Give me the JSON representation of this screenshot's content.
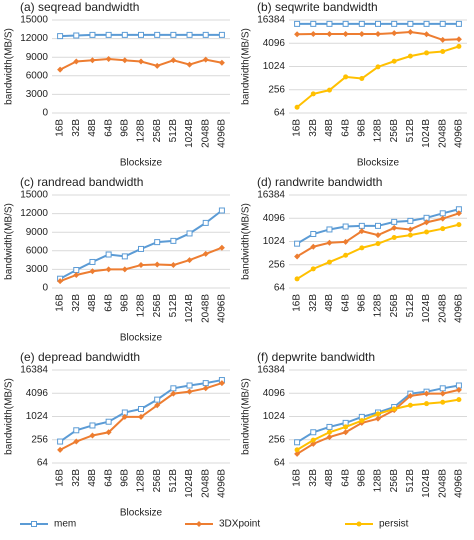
{
  "chart_data": [
    {
      "type": "line",
      "title": "(a) seqread bandwidth",
      "x_label": "Blocksize",
      "y_label": "bandwidth(MB/S)",
      "categories": [
        "16B",
        "32B",
        "48B",
        "64B",
        "96B",
        "128B",
        "256B",
        "512B",
        "1024B",
        "2048B",
        "4096B"
      ],
      "ylim": [
        0,
        15000
      ],
      "yticks": [
        0,
        3000,
        6000,
        9000,
        12000,
        15000
      ],
      "grid": true,
      "series": [
        {
          "name": "mem",
          "color": "#5b9bd5",
          "values": [
            12400,
            12500,
            12600,
            12600,
            12600,
            12600,
            12600,
            12600,
            12600,
            12600,
            12600
          ]
        },
        {
          "name": "3DXpoint",
          "color": "#ed7d31",
          "values": [
            7000,
            8300,
            8500,
            8700,
            8500,
            8300,
            7600,
            8500,
            7800,
            8600,
            8100
          ]
        }
      ]
    },
    {
      "type": "line",
      "title": "(b) seqwrite bandwidth",
      "x_label": "Blocksize",
      "y_label": "bandwidth(MB/S)",
      "categories": [
        "16B",
        "32B",
        "48B",
        "64B",
        "96B",
        "128B",
        "256B",
        "512B",
        "1024B",
        "2048B",
        "4096B"
      ],
      "ylim": [
        64,
        16384
      ],
      "yticks": [
        64,
        256,
        1024,
        4096,
        16384
      ],
      "yscale": "log",
      "grid": true,
      "series": [
        {
          "name": "mem",
          "color": "#5b9bd5",
          "values": [
            13000,
            13000,
            13000,
            13000,
            13000,
            13000,
            13000,
            13000,
            13000,
            13000,
            13000
          ]
        },
        {
          "name": "3DXpoint",
          "color": "#ed7d31",
          "values": [
            7000,
            7100,
            7100,
            7100,
            7100,
            7100,
            7500,
            8000,
            7000,
            5000,
            5200
          ]
        },
        {
          "name": "persist",
          "color": "#ffc000",
          "values": [
            90,
            200,
            250,
            550,
            500,
            1000,
            1400,
            1900,
            2300,
            2500,
            3400
          ]
        }
      ]
    },
    {
      "type": "line",
      "title": "(c) randread bandwidth",
      "x_label": "Blocksize",
      "y_label": "bandwidth(MB/S)",
      "categories": [
        "16B",
        "32B",
        "48B",
        "64B",
        "96B",
        "128B",
        "256B",
        "512B",
        "1024B",
        "2048B",
        "4096B"
      ],
      "ylim": [
        0,
        15000
      ],
      "yticks": [
        0,
        3000,
        6000,
        9000,
        12000,
        15000
      ],
      "grid": true,
      "series": [
        {
          "name": "mem",
          "color": "#5b9bd5",
          "values": [
            1500,
            2900,
            4200,
            5400,
            5100,
            6300,
            7400,
            7600,
            8800,
            10500,
            12500
          ]
        },
        {
          "name": "3DXpoint",
          "color": "#ed7d31",
          "values": [
            1100,
            2100,
            2700,
            3000,
            3000,
            3700,
            3800,
            3700,
            4500,
            5500,
            6500
          ]
        }
      ]
    },
    {
      "type": "line",
      "title": "(d) randwrite bandwidth",
      "y_label": "bandwidth(MB/S)",
      "categories": [
        "16B",
        "32B",
        "48B",
        "64B",
        "96B",
        "128B",
        "256B",
        "512B",
        "1024B",
        "2048B",
        "4096B"
      ],
      "ylim": [
        64,
        16384
      ],
      "yticks": [
        64,
        256,
        1024,
        4096,
        16384
      ],
      "yscale": "log",
      "grid": true,
      "series": [
        {
          "name": "mem",
          "color": "#5b9bd5",
          "values": [
            900,
            1600,
            2100,
            2500,
            2600,
            2600,
            3300,
            3500,
            4200,
            5500,
            7000
          ]
        },
        {
          "name": "3DXpoint",
          "color": "#ed7d31",
          "values": [
            420,
            750,
            950,
            1000,
            1900,
            1500,
            2300,
            2100,
            3200,
            4000,
            5500
          ]
        },
        {
          "name": "persist",
          "color": "#ffc000",
          "values": [
            110,
            200,
            300,
            450,
            700,
            900,
            1300,
            1500,
            1800,
            2200,
            2800
          ]
        }
      ]
    },
    {
      "type": "line",
      "title": "(e) depread bandwidth",
      "x_label": "Blocksize",
      "y_label": "bandwidth(MB/S)",
      "categories": [
        "16B",
        "32B",
        "48B",
        "64B",
        "96B",
        "128B",
        "256B",
        "512B",
        "1024B",
        "2048B",
        "4096B"
      ],
      "ylim": [
        64,
        16384
      ],
      "yticks": [
        64,
        256,
        1024,
        4096,
        16384
      ],
      "yscale": "log",
      "grid": true,
      "series": [
        {
          "name": "mem",
          "color": "#5b9bd5",
          "values": [
            230,
            450,
            600,
            750,
            1300,
            1600,
            2800,
            5500,
            6500,
            7500,
            9000
          ]
        },
        {
          "name": "3DXpoint",
          "color": "#ed7d31",
          "values": [
            140,
            230,
            330,
            400,
            1000,
            1000,
            2000,
            4000,
            4500,
            5500,
            7500
          ]
        }
      ]
    },
    {
      "type": "line",
      "title": "(f) depwrite bandwidth",
      "y_label": "bandwidth(MB/S)",
      "categories": [
        "16B",
        "32B",
        "48B",
        "64B",
        "96B",
        "128B",
        "256B",
        "512B",
        "1024B",
        "2048B",
        "4096B"
      ],
      "ylim": [
        64,
        16384
      ],
      "yticks": [
        64,
        256,
        1024,
        4096,
        16384
      ],
      "yscale": "log",
      "grid": true,
      "series": [
        {
          "name": "mem",
          "color": "#5b9bd5",
          "values": [
            220,
            400,
            550,
            700,
            1000,
            1300,
            1800,
            4000,
            4500,
            5500,
            6500
          ]
        },
        {
          "name": "3DXpoint",
          "color": "#ed7d31",
          "values": [
            110,
            200,
            300,
            400,
            700,
            900,
            1500,
            3500,
            4000,
            4000,
            5000
          ]
        },
        {
          "name": "persist",
          "color": "#ffc000",
          "values": [
            140,
            250,
            400,
            550,
            800,
            1200,
            1600,
            2000,
            2200,
            2400,
            2800
          ]
        }
      ]
    }
  ]
}
